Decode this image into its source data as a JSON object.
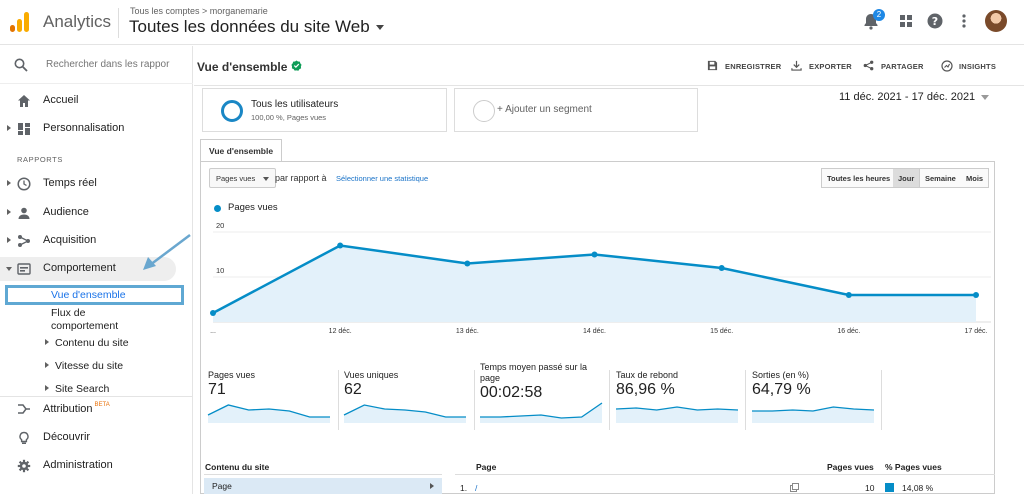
{
  "topbar": {
    "app_name": "Analytics",
    "breadcrumb": "Tous les comptes > morganemarie",
    "property": "Toutes les données du site Web",
    "notification_count": "2"
  },
  "sidebar": {
    "search_placeholder": "Rechercher dans les rappor",
    "items_top": [
      {
        "label": "Accueil",
        "icon": "home-icon"
      },
      {
        "label": "Personnalisation",
        "icon": "dashboard-icon"
      }
    ],
    "section_label": "RAPPORTS",
    "reports": [
      {
        "label": "Temps réel",
        "icon": "clock-icon"
      },
      {
        "label": "Audience",
        "icon": "person-icon"
      },
      {
        "label": "Acquisition",
        "icon": "acquisition-icon"
      },
      {
        "label": "Comportement",
        "icon": "behavior-icon"
      }
    ],
    "behavior_sub": {
      "overview": "Vue d'ensemble",
      "flow_line1": "Flux de",
      "flow_line2": "comportement",
      "site_content": "Contenu du site",
      "site_speed": "Vitesse du site",
      "site_search": "Site Search"
    },
    "items_bottom": [
      {
        "label": "Attribution",
        "icon": "attribution-icon",
        "badge": "BETA"
      },
      {
        "label": "Découvrir",
        "icon": "lightbulb-icon"
      },
      {
        "label": "Administration",
        "icon": "gear-icon"
      }
    ]
  },
  "header": {
    "title": "Vue d'ensemble",
    "actions": [
      "ENREGISTRER",
      "EXPORTER",
      "PARTAGER",
      "INSIGHTS"
    ]
  },
  "segments": {
    "active_title": "Tous les utilisateurs",
    "active_sub": "100,00 %, Pages vues",
    "add_label": "+ Ajouter un segment"
  },
  "date_range": "11 déc. 2021 - 17 déc. 2021",
  "tab_label": "Vue d'ensemble",
  "controls": {
    "metric": "Pages vues",
    "compare_label": "par rapport à",
    "choose_metric": "Sélectionner une statistique",
    "granularity": [
      "Toutes les heures",
      "Jour",
      "Semaine",
      "Mois"
    ],
    "granularity_selected": "Jour"
  },
  "colors": {
    "accent": "#058dc7",
    "area": "#e3f1fa",
    "brand_orange": "#f9ab00"
  },
  "chart_data": {
    "type": "area",
    "series": [
      {
        "name": "Pages vues",
        "values": [
          2,
          17,
          13,
          15,
          12,
          6,
          6
        ]
      }
    ],
    "categories": [
      "...",
      "12 déc.",
      "13 déc.",
      "14 déc.",
      "15 déc.",
      "16 déc.",
      "17 déc."
    ],
    "y_ticks": [
      "20",
      "10"
    ],
    "ylim": [
      0,
      20
    ],
    "grid": true,
    "legend": "top-left"
  },
  "scorecards": [
    {
      "label": "Pages vues",
      "value": "71",
      "spark": [
        0.3,
        0.8,
        0.55,
        0.6,
        0.5,
        0.2,
        0.2
      ]
    },
    {
      "label": "Vues uniques",
      "value": "62",
      "spark": [
        0.3,
        0.8,
        0.6,
        0.55,
        0.45,
        0.2,
        0.2
      ]
    },
    {
      "label": "Temps moyen passé sur la page",
      "value": "00:02:58",
      "spark": [
        0.2,
        0.2,
        0.25,
        0.3,
        0.15,
        0.2,
        0.9
      ]
    },
    {
      "label": "Taux de rebond",
      "value": "86,96 %",
      "spark": [
        0.6,
        0.65,
        0.55,
        0.7,
        0.55,
        0.6,
        0.55
      ]
    },
    {
      "label": "Sorties (en %)",
      "value": "64,79 %",
      "spark": [
        0.5,
        0.5,
        0.55,
        0.5,
        0.7,
        0.6,
        0.55
      ]
    }
  ],
  "table": {
    "left_header": "Contenu du site",
    "left_row": "Page",
    "headers": {
      "page": "Page",
      "views": "Pages vues",
      "pct": "% Pages vues"
    },
    "rows": [
      {
        "index": "1.",
        "page": "/",
        "views": "10",
        "pct": "14,08 %"
      }
    ]
  }
}
